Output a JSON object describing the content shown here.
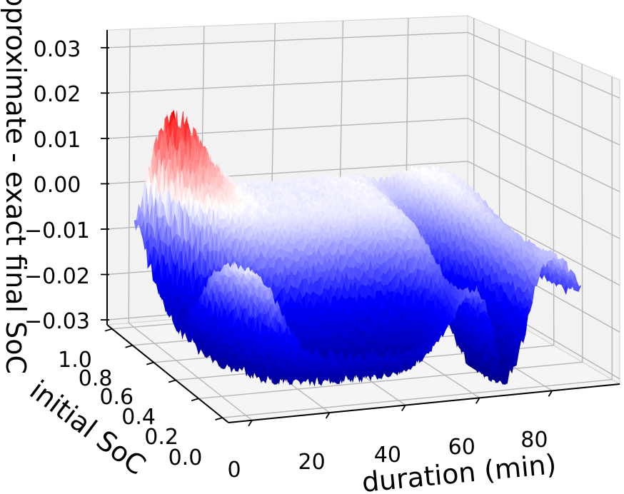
{
  "chart_data": {
    "type": "surface3d",
    "title": "",
    "xlabel": "duration (min)",
    "ylabel": "initial SoC",
    "zlabel": "approximate - exact final SoC",
    "x_ticks": [
      {
        "value": 0,
        "label": "0"
      },
      {
        "value": 20,
        "label": "20"
      },
      {
        "value": 40,
        "label": "40"
      },
      {
        "value": 60,
        "label": "60"
      },
      {
        "value": 80,
        "label": "80"
      }
    ],
    "y_ticks": [
      {
        "value": 1.0,
        "label": "1.0"
      },
      {
        "value": 0.8,
        "label": "0.8"
      },
      {
        "value": 0.6,
        "label": "0.6"
      },
      {
        "value": 0.4,
        "label": "0.4"
      },
      {
        "value": 0.2,
        "label": "0.2"
      },
      {
        "value": 0.0,
        "label": "0.0"
      }
    ],
    "z_ticks": [
      {
        "value": 0.03,
        "label": "0.03"
      },
      {
        "value": 0.02,
        "label": "0.02"
      },
      {
        "value": 0.01,
        "label": "0.01"
      },
      {
        "value": 0.0,
        "label": "0.00"
      },
      {
        "value": -0.01,
        "label": "−0.01"
      },
      {
        "value": -0.02,
        "label": "−0.02"
      },
      {
        "value": -0.03,
        "label": "−0.03"
      }
    ],
    "x_range": [
      -6,
      99
    ],
    "y_range": [
      -0.05,
      1.05
    ],
    "z_range": [
      -0.0311,
      0.0339
    ],
    "data_domain": {
      "duration_min": [
        0,
        90
      ],
      "initial_soc": [
        0,
        1
      ]
    },
    "grid": true,
    "legend": "none",
    "color_scale": {
      "name": "seismic",
      "vmin": -0.0315,
      "vmax": 0.0315,
      "stops": [
        {
          "t": 0.0,
          "rgb": [
            0,
            0,
            127
          ]
        },
        {
          "t": 0.25,
          "rgb": [
            0,
            0,
            255
          ]
        },
        {
          "t": 0.5,
          "rgb": [
            255,
            255,
            255
          ]
        },
        {
          "t": 0.75,
          "rgb": [
            255,
            0,
            0
          ]
        },
        {
          "t": 1.0,
          "rgb": [
            127,
            0,
            0
          ]
        }
      ]
    },
    "features": {
      "red_peak": {
        "duration_min": 10,
        "initial_soc": 1.0,
        "value": 0.012
      },
      "near_zero_plateau": {
        "duration_range": [
          10,
          55
        ],
        "soc_range": [
          0.4,
          1.0
        ],
        "value": -0.001
      },
      "deep_valley": {
        "duration_range": [
          8,
          55
        ],
        "soc_range": [
          0.0,
          0.35
        ],
        "value": -0.028
      },
      "crest": {
        "duration_min": 59,
        "value": -0.012
      },
      "deep_dip": {
        "duration_min": 70,
        "value": -0.031
      },
      "white_hump": {
        "duration_min": 85,
        "value": -0.004
      },
      "edge_dip_at_90": {
        "value": -0.013
      }
    },
    "surface_model": {
      "bump": {
        "amp": 0.0138,
        "d0": 10,
        "dsig": 7,
        "s0": 1.03,
        "ssig": 0.21
      },
      "valley": {
        "amp": -0.0307,
        "center_base": 0.17,
        "center_bump": 0.45,
        "center_dscale": 8,
        "center_dpow": 1.4,
        "sig_left": 0.22,
        "sig_right_base": 0.13,
        "sig_right_bump": 0.18,
        "floor_min": 0.04,
        "onset_shift": 3,
        "onset_scale": 2,
        "end_center": 57,
        "end_scale": 3.5,
        "plateau_amp": 0.92,
        "osc_center": 0.17,
        "osc_sig": 0.3,
        "osc_floor": 0.05,
        "dip2_amp": 1.03,
        "dip2_center": 70,
        "dip2_sig": 4.8,
        "tail_amp": 0.75,
        "tail_center": 89,
        "tail_scale": 3.5
      },
      "noise": {
        "base": 0.0009,
        "bump_frac": 0.3,
        "valley_frac": 0.025
      },
      "mesh": {
        "nu": 150,
        "nv": 60
      }
    },
    "style": {
      "background": "#ffffff",
      "pane_wall": "#f2f2f2",
      "pane_floor": "#f5f5f5",
      "pane_edge": "#d4d4d4",
      "grid_color": "#b5b5b5",
      "axis_color": "#000000",
      "text_color": "#000000"
    }
  }
}
